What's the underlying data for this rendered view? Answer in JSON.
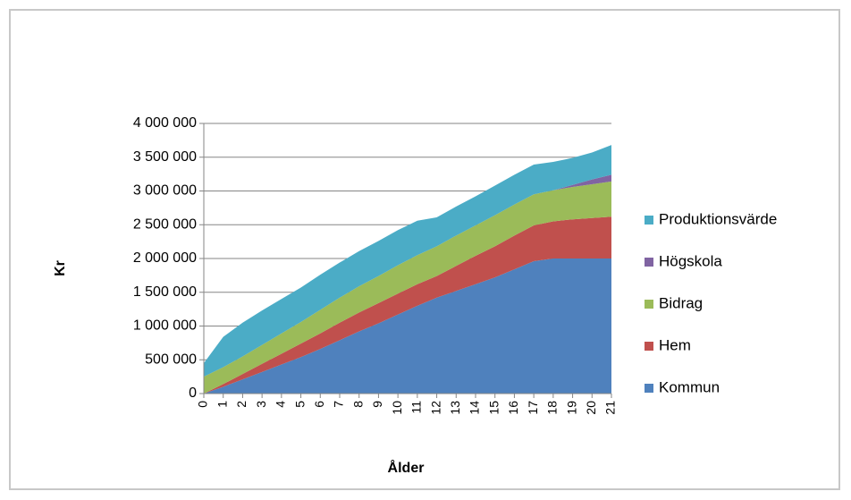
{
  "chart_data": {
    "type": "area",
    "stacked": true,
    "title": "",
    "xlabel": "Ålder",
    "ylabel": "Kr",
    "ylim": [
      0,
      4000000
    ],
    "y_ticks": [
      0,
      500000,
      1000000,
      1500000,
      2000000,
      2500000,
      3000000,
      3500000,
      4000000
    ],
    "y_tick_labels": [
      "0",
      "500 000",
      "1 000 000",
      "1 500 000",
      "2 000 000",
      "2 500 000",
      "3 000 000",
      "3 500 000",
      "4 000 000"
    ],
    "x_tick_labels": [
      "0",
      "1",
      "2",
      "3",
      "4",
      "5",
      "6",
      "7",
      "8",
      "9",
      "10",
      "11",
      "12",
      "13",
      "14",
      "15",
      "16",
      "17",
      "18",
      "19",
      "20",
      "21"
    ],
    "grid": "horizontal",
    "legend_position": "right",
    "series": [
      {
        "name": "Kommun",
        "color": "#4f81bd",
        "values": [
          0,
          100000,
          210000,
          320000,
          430000,
          540000,
          660000,
          790000,
          920000,
          1040000,
          1170000,
          1300000,
          1420000,
          1520000,
          1620000,
          1720000,
          1840000,
          1960000,
          2000000,
          2000000,
          2000000,
          2000000
        ]
      },
      {
        "name": "Hem",
        "color": "#c0504d",
        "values": [
          0,
          40000,
          80000,
          120000,
          160000,
          200000,
          230000,
          260000,
          280000,
          300000,
          310000,
          320000,
          320000,
          370000,
          420000,
          460000,
          500000,
          530000,
          550000,
          580000,
          600000,
          620000
        ]
      },
      {
        "name": "Bidrag",
        "color": "#9bbb59",
        "values": [
          250000,
          250000,
          260000,
          280000,
          300000,
          320000,
          350000,
          370000,
          390000,
          400000,
          420000,
          430000,
          440000,
          450000,
          450000,
          460000,
          460000,
          460000,
          460000,
          480000,
          500000,
          520000
        ]
      },
      {
        "name": "Högskola",
        "color": "#8064a2",
        "values": [
          0,
          0,
          0,
          0,
          0,
          0,
          0,
          0,
          0,
          0,
          0,
          0,
          0,
          0,
          0,
          0,
          0,
          0,
          0,
          30000,
          70000,
          100000
        ]
      },
      {
        "name": "Produktionsvärde",
        "color": "#4bacc6",
        "values": [
          200000,
          450000,
          500000,
          510000,
          510000,
          510000,
          520000,
          520000,
          520000,
          520000,
          520000,
          510000,
          430000,
          430000,
          430000,
          440000,
          440000,
          440000,
          420000,
          400000,
          400000,
          440000
        ]
      }
    ]
  }
}
